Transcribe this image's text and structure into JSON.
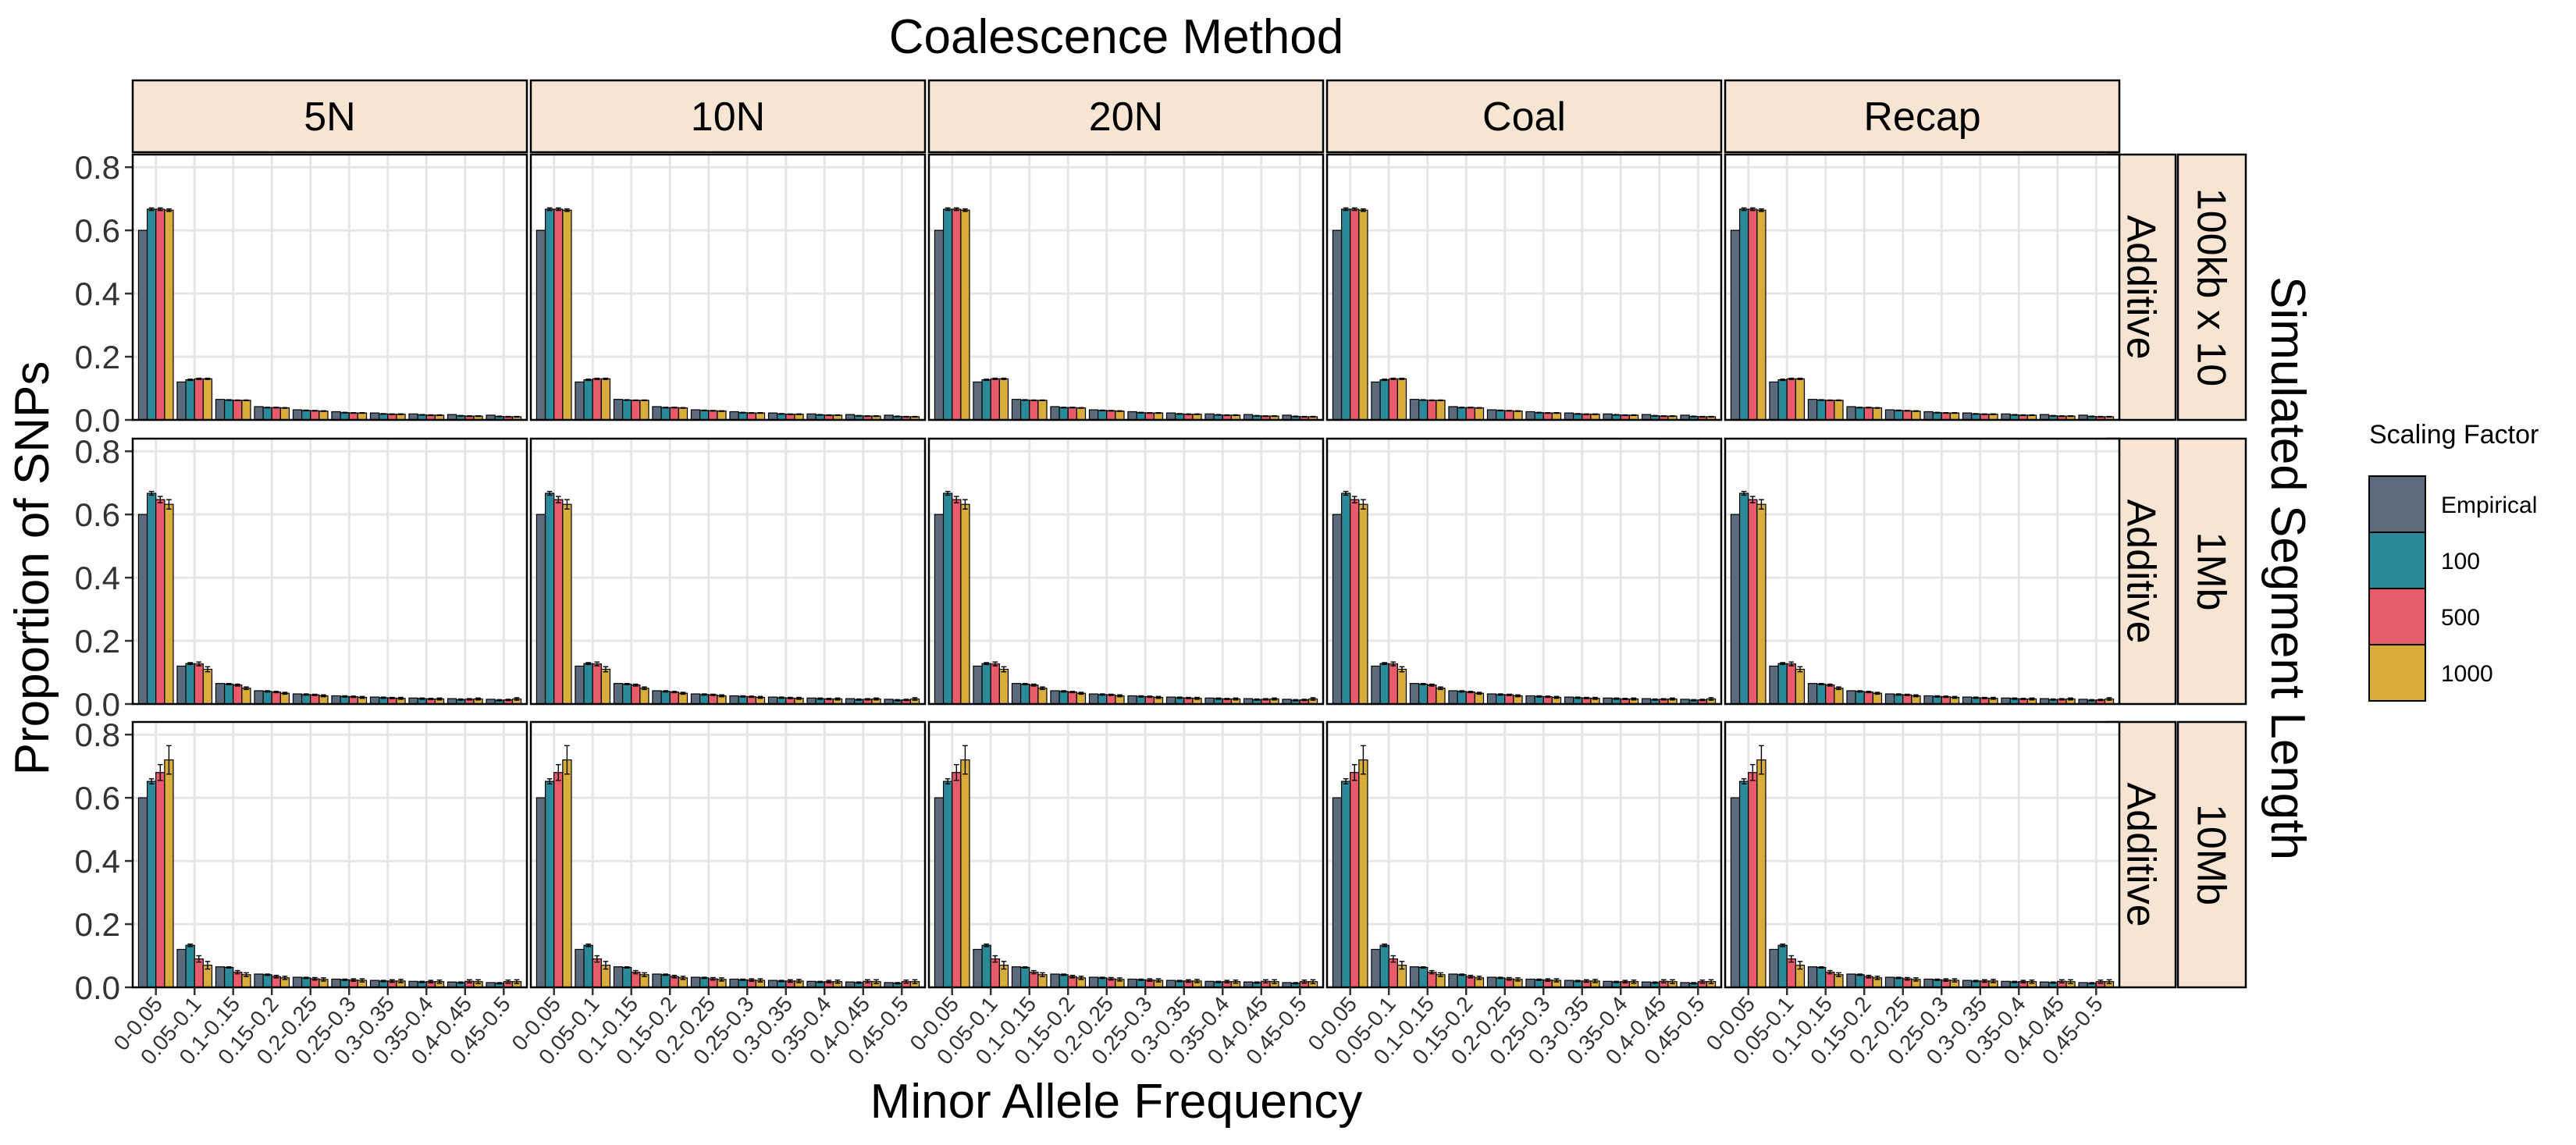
{
  "chart_data": {
    "type": "bar",
    "title": "Coalescence Method",
    "xlabel": "Minor Allele Frequency",
    "ylabel": "Proportion of SNPs",
    "right_label": "Simulated Segment Length",
    "ylim": [
      0,
      0.84
    ],
    "yticks": [
      "0.0",
      "0.2",
      "0.4",
      "0.6",
      "0.8"
    ],
    "ytick_values": [
      0,
      0.2,
      0.4,
      0.6,
      0.8
    ],
    "grid": true,
    "legend_position": "right",
    "categories": [
      "0-0.05",
      "0.05-0.1",
      "0.1-0.15",
      "0.15-0.2",
      "0.2-0.25",
      "0.25-0.3",
      "0.3-0.35",
      "0.35-0.4",
      "0.4-0.45",
      "0.45-0.5"
    ],
    "columns": [
      "5N",
      "10N",
      "20N",
      "Coal",
      "Recap"
    ],
    "rows": [
      {
        "model": "Additive",
        "length": "100kb x 10"
      },
      {
        "model": "Additive",
        "length": "1Mb"
      },
      {
        "model": "Additive",
        "length": "10Mb"
      }
    ],
    "legend": {
      "title": "Scaling Factor",
      "entries": [
        {
          "label": "Empirical",
          "color": "#5b6b7c"
        },
        {
          "label": "100",
          "color": "#2b8a9a"
        },
        {
          "label": "500",
          "color": "#e85b6a"
        },
        {
          "label": "1000",
          "color": "#d9ad3c"
        }
      ]
    },
    "series_by_row": [
      {
        "length": "100kb x 10",
        "series": [
          {
            "name": "Empirical",
            "values": [
              0.6,
              0.12,
              0.065,
              0.042,
              0.032,
              0.026,
              0.022,
              0.019,
              0.017,
              0.015
            ],
            "error": [
              0,
              0,
              0,
              0,
              0,
              0,
              0,
              0,
              0,
              0
            ]
          },
          {
            "name": "100",
            "values": [
              0.667,
              0.127,
              0.063,
              0.039,
              0.03,
              0.023,
              0.019,
              0.016,
              0.013,
              0.011
            ],
            "error": [
              0.004,
              0.002,
              0.001,
              0.001,
              0.001,
              0.001,
              0.001,
              0.001,
              0.001,
              0.001
            ]
          },
          {
            "name": "500",
            "values": [
              0.667,
              0.13,
              0.062,
              0.039,
              0.029,
              0.022,
              0.018,
              0.015,
              0.012,
              0.01
            ],
            "error": [
              0.004,
              0.002,
              0.001,
              0.001,
              0.001,
              0.001,
              0.001,
              0.001,
              0.001,
              0.001
            ]
          },
          {
            "name": "1000",
            "values": [
              0.664,
              0.13,
              0.062,
              0.038,
              0.028,
              0.022,
              0.018,
              0.015,
              0.012,
              0.01
            ],
            "error": [
              0.004,
              0.002,
              0.001,
              0.001,
              0.001,
              0.001,
              0.001,
              0.001,
              0.001,
              0.001
            ]
          }
        ]
      },
      {
        "length": "1Mb",
        "series": [
          {
            "name": "Empirical",
            "values": [
              0.6,
              0.12,
              0.065,
              0.042,
              0.032,
              0.026,
              0.022,
              0.019,
              0.017,
              0.015
            ],
            "error": [
              0,
              0,
              0,
              0,
              0,
              0,
              0,
              0,
              0,
              0
            ]
          },
          {
            "name": "100",
            "values": [
              0.667,
              0.128,
              0.063,
              0.04,
              0.03,
              0.024,
              0.02,
              0.017,
              0.014,
              0.012
            ],
            "error": [
              0.006,
              0.003,
              0.002,
              0.002,
              0.002,
              0.002,
              0.002,
              0.002,
              0.002,
              0.002
            ]
          },
          {
            "name": "500",
            "values": [
              0.647,
              0.127,
              0.06,
              0.038,
              0.029,
              0.023,
              0.019,
              0.016,
              0.015,
              0.013
            ],
            "error": [
              0.01,
              0.006,
              0.003,
              0.002,
              0.002,
              0.002,
              0.002,
              0.002,
              0.002,
              0.002
            ]
          },
          {
            "name": "1000",
            "values": [
              0.632,
              0.11,
              0.05,
              0.034,
              0.026,
              0.021,
              0.018,
              0.016,
              0.016,
              0.016
            ],
            "error": [
              0.015,
              0.008,
              0.004,
              0.003,
              0.003,
              0.003,
              0.003,
              0.003,
              0.003,
              0.004
            ]
          }
        ]
      },
      {
        "length": "10Mb",
        "series": [
          {
            "name": "Empirical",
            "values": [
              0.6,
              0.12,
              0.065,
              0.042,
              0.032,
              0.026,
              0.022,
              0.019,
              0.017,
              0.015
            ],
            "error": [
              0,
              0,
              0,
              0,
              0,
              0,
              0,
              0,
              0,
              0
            ]
          },
          {
            "name": "100",
            "values": [
              0.652,
              0.133,
              0.063,
              0.04,
              0.03,
              0.024,
              0.02,
              0.017,
              0.015,
              0.013
            ],
            "error": [
              0.008,
              0.004,
              0.002,
              0.002,
              0.002,
              0.002,
              0.002,
              0.002,
              0.002,
              0.002
            ]
          },
          {
            "name": "500",
            "values": [
              0.68,
              0.09,
              0.048,
              0.034,
              0.027,
              0.023,
              0.02,
              0.018,
              0.019,
              0.018
            ],
            "error": [
              0.025,
              0.01,
              0.005,
              0.004,
              0.004,
              0.004,
              0.004,
              0.004,
              0.005,
              0.005
            ]
          },
          {
            "name": "1000",
            "values": [
              0.72,
              0.07,
              0.04,
              0.03,
              0.025,
              0.022,
              0.02,
              0.018,
              0.018,
              0.018
            ],
            "error": [
              0.045,
              0.012,
              0.006,
              0.005,
              0.005,
              0.005,
              0.005,
              0.005,
              0.006,
              0.006
            ]
          }
        ]
      }
    ]
  }
}
